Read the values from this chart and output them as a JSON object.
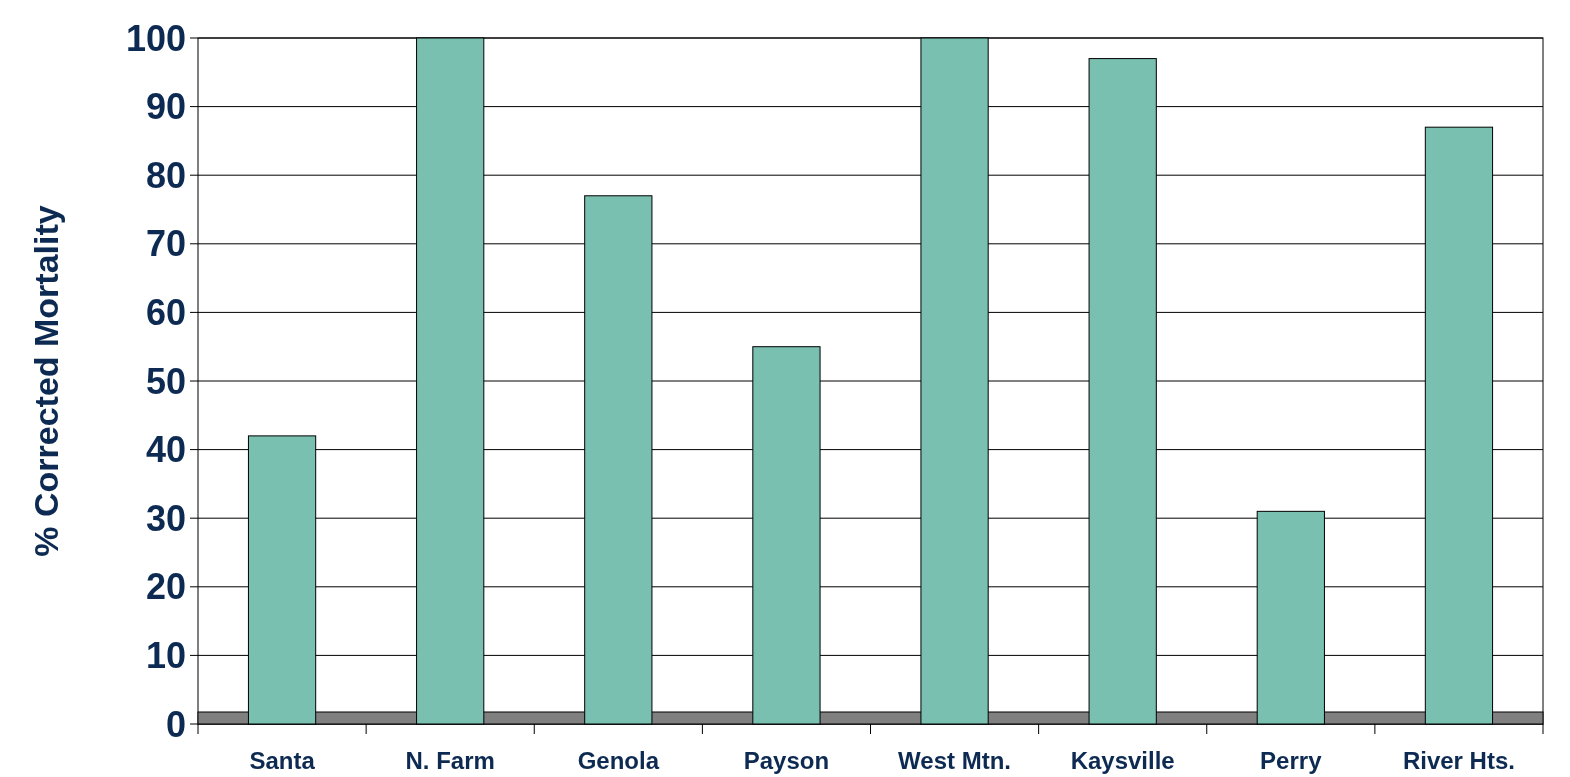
{
  "chart_data": {
    "type": "bar",
    "ylabel": "% Corrected Mortality",
    "categories": [
      "Santa",
      "N. Farm",
      "Genola",
      "Payson",
      "West Mtn.",
      "Kaysville",
      "Perry",
      "River Hts."
    ],
    "values": [
      42,
      100,
      77,
      55,
      100,
      97,
      31,
      87
    ],
    "color": "#7ac0b0",
    "ylim": [
      0,
      100
    ],
    "yticks": [
      0,
      10,
      20,
      30,
      40,
      50,
      60,
      70,
      80,
      90,
      100
    ],
    "grid": "y"
  }
}
